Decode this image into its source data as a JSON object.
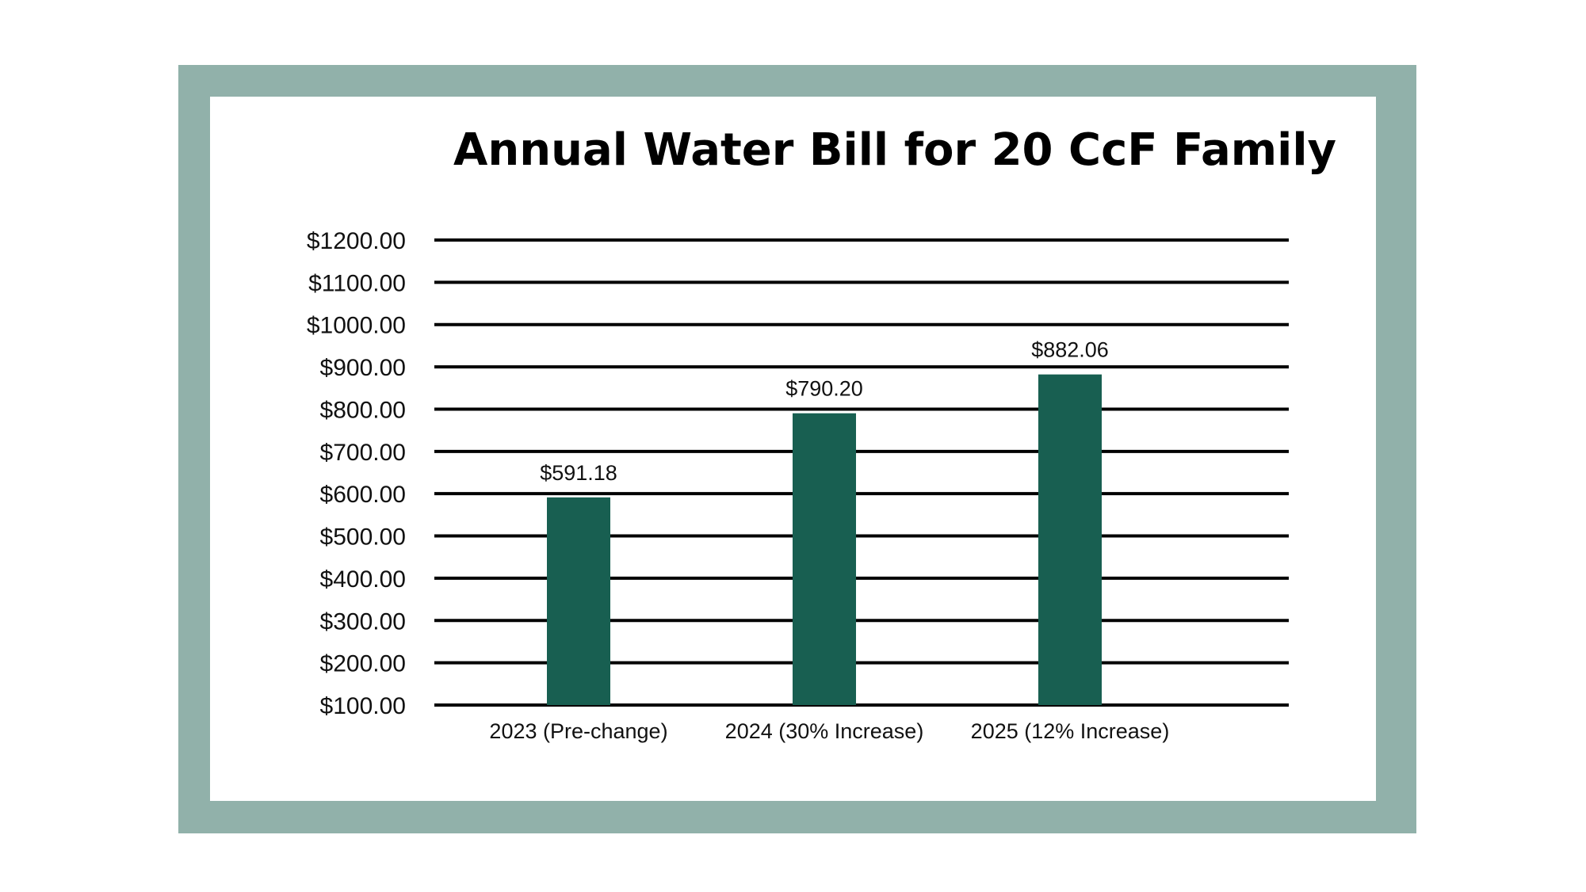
{
  "chart_data": {
    "type": "bar",
    "title": "Annual Water Bill for 20 CcF Family",
    "xlabel": "",
    "ylabel": "",
    "categories": [
      "2023 (Pre-change)",
      "2024 (30% Increase)",
      "2025 (12% Increase)"
    ],
    "values": [
      591.18,
      790.2,
      882.06
    ],
    "value_labels": [
      "$591.18",
      "$790.20",
      "$882.06"
    ],
    "yticks": [
      1200,
      1100,
      1000,
      900,
      800,
      700,
      600,
      500,
      400,
      300,
      200,
      100
    ],
    "ytick_labels": [
      "$1200.00",
      "$1100.00",
      "$1000.00",
      "$900.00",
      "$800.00",
      "$700.00",
      "$600.00",
      "$500.00",
      "$400.00",
      "$300.00",
      "$200.00",
      "$100.00"
    ],
    "ylim": [
      100,
      1200
    ],
    "grid": true,
    "legend": "none",
    "colors": {
      "bar": "#185f51",
      "frame": "#91b1aa",
      "grid": "#000000"
    }
  }
}
